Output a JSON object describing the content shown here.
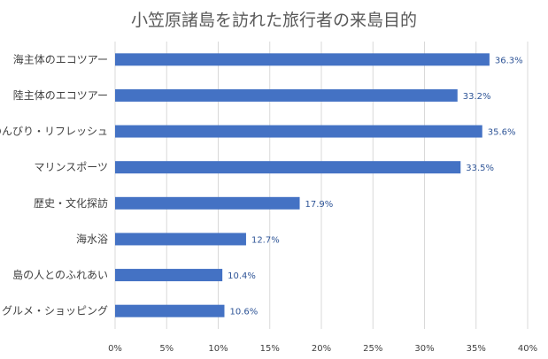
{
  "chart_data": {
    "type": "bar",
    "orientation": "horizontal",
    "title": "小笠原諸島を訪れた旅行者の来島目的",
    "categories": [
      "海主体のエコツアー",
      "陸主体のエコツアー",
      "のんびり・リフレッシュ",
      "マリンスポーツ",
      "歴史・文化探訪",
      "海水浴",
      "島の人とのふれあい",
      "グルメ・ショッピング"
    ],
    "values": [
      36.3,
      33.2,
      35.6,
      33.5,
      17.9,
      12.7,
      10.4,
      10.6
    ],
    "data_labels": [
      "36.3%",
      "33.2%",
      "35.6%",
      "33.5%",
      "17.9%",
      "12.7%",
      "10.4%",
      "10.6%"
    ],
    "x_ticks": [
      0,
      5,
      10,
      15,
      20,
      25,
      30,
      35,
      40
    ],
    "x_tick_labels": [
      "0%",
      "5%",
      "10%",
      "15%",
      "20%",
      "25%",
      "30%",
      "35%",
      "40%"
    ],
    "xlim": [
      0,
      40
    ],
    "grid": "vertical",
    "legend": "none",
    "colors": {
      "bar": "#4472C4",
      "grid": "#D9D9D9",
      "data_label": "#2F5597"
    }
  }
}
